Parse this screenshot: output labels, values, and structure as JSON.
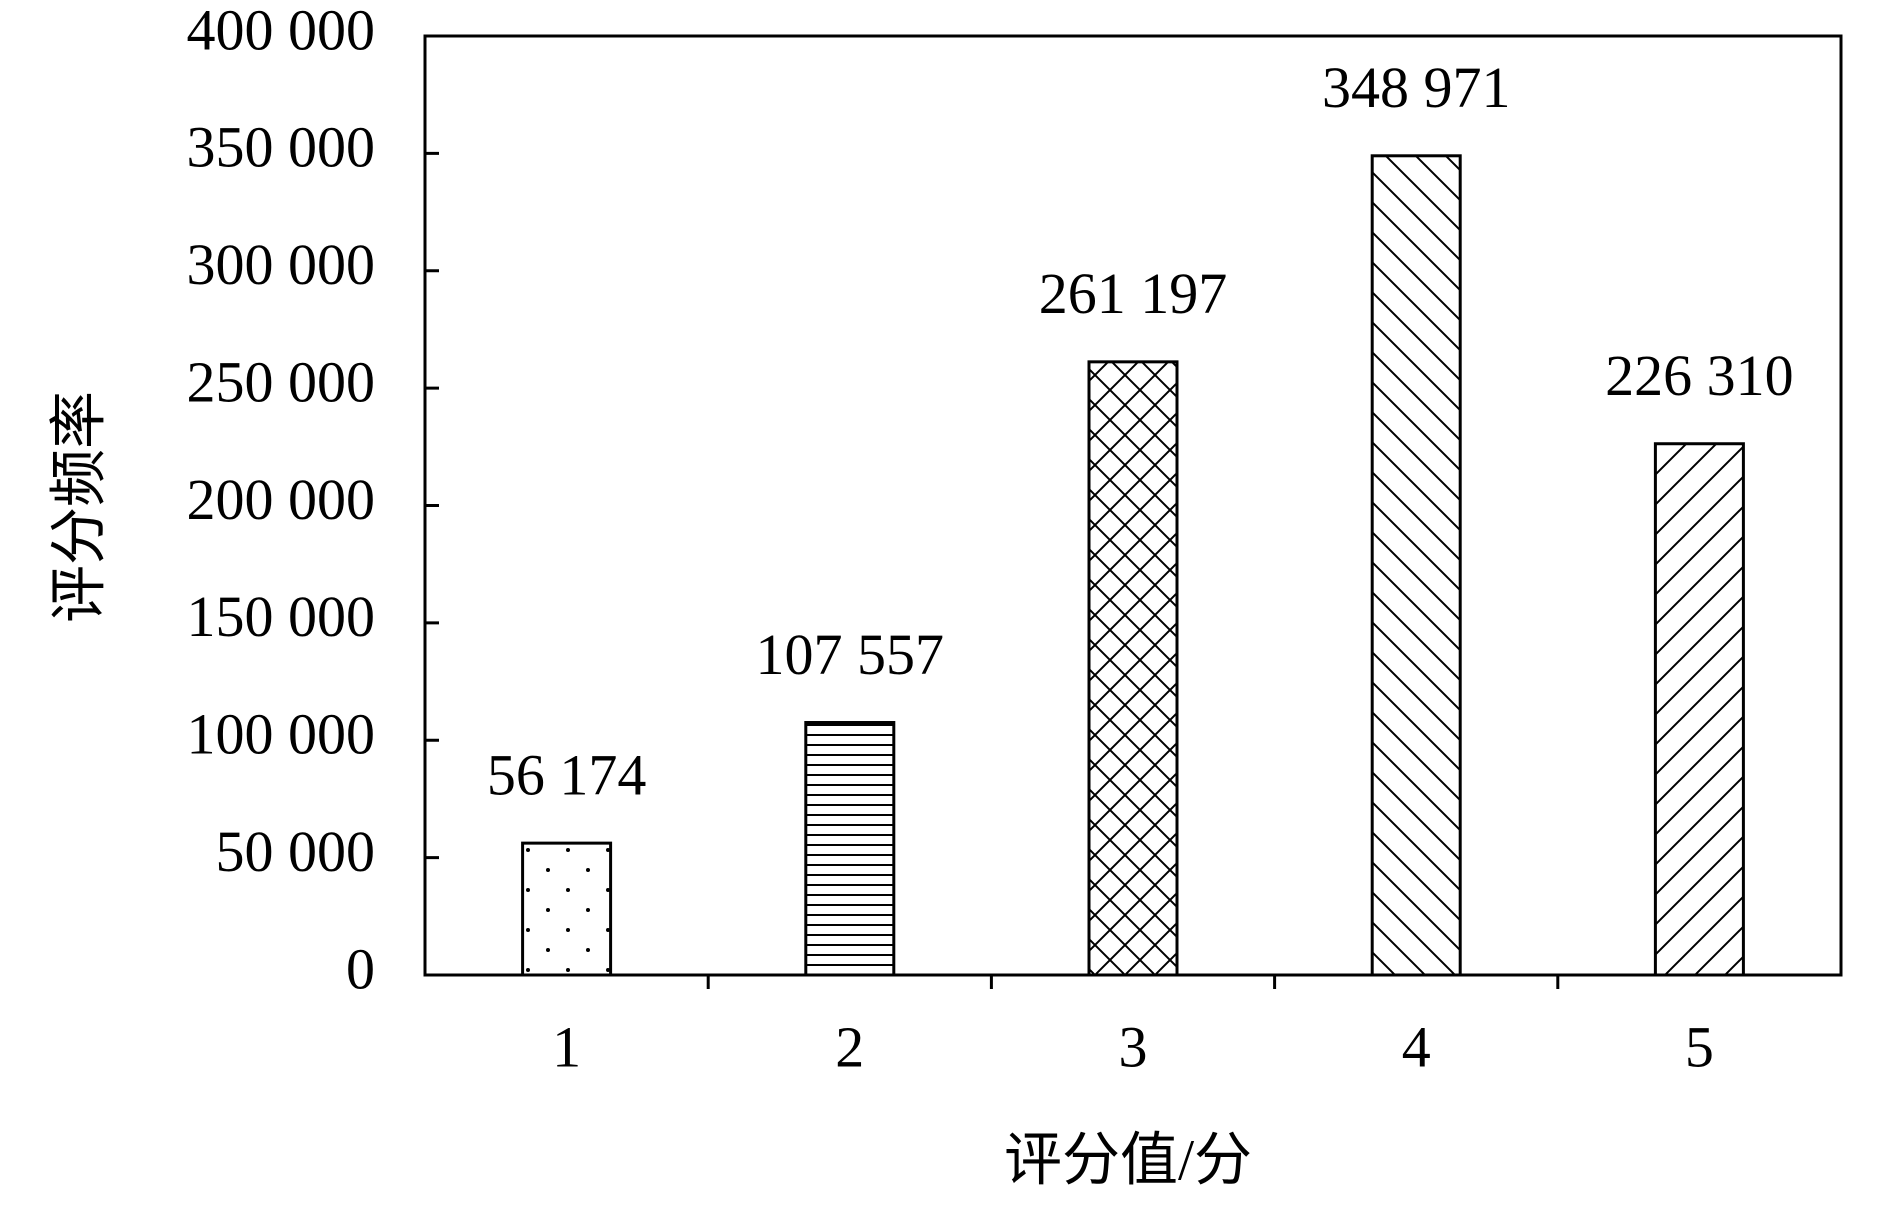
{
  "chart_data": {
    "type": "bar",
    "x_label": "评分值/分",
    "y_label": "评分频率",
    "categories": [
      "1",
      "2",
      "3",
      "4",
      "5"
    ],
    "values": [
      56174,
      107557,
      261197,
      348971,
      226310
    ],
    "value_labels": [
      "56 174",
      "107 557",
      "261 197",
      "348 971",
      "226 310"
    ],
    "patterns": [
      "dots",
      "horizontal",
      "crosshatch",
      "backward-diagonal",
      "forward-diagonal"
    ],
    "color": "#000000",
    "ylim": [
      0,
      400000
    ],
    "yticks": [
      0,
      {
        "value": 50000,
        "label": "50 000"
      },
      {
        "value": 100000,
        "label": "100 000"
      },
      {
        "value": 150000,
        "label": "150 000"
      },
      {
        "value": 200000,
        "label": "200 000"
      },
      {
        "value": 250000,
        "label": "250 000"
      },
      {
        "value": 300000,
        "label": "300 000"
      },
      {
        "value": 350000,
        "label": "350 000"
      },
      {
        "value": 400000,
        "label": "400 000"
      }
    ],
    "grid": false
  }
}
